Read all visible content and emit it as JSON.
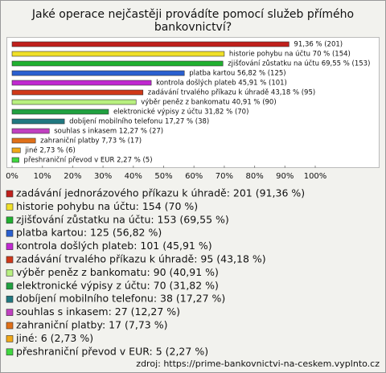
{
  "chart_data": {
    "type": "hbar",
    "title": [
      "Jaké operace nejčastěji provádíte pomocí služeb přímého",
      "bankovnictví?"
    ],
    "values": [
      91.36,
      70,
      69.55,
      56.82,
      45.91,
      43.18,
      40.91,
      31.82,
      17.27,
      12.27,
      7.73,
      2.73,
      2.27
    ],
    "value_labels": [
      "91,36 % (201)",
      "historie pohybu na účtu 70 % (154)",
      "zjišťování zůstatku na účtu 69,55 % (153)",
      "platba kartou 56,82 % (125)",
      "kontrola došlých plateb 45,91 % (101)",
      "zadávání trvalého příkazu k úhradě 43,18 % (95)",
      "výběr peněz z bankomatu 40,91 % (90)",
      "elektronické výpisy z účtu 31,82 % (70)",
      "dobíjení mobilního telefonu 17,27 % (38)",
      "souhlas s inkasem 12,27 % (27)",
      "zahraniční platby 7,73 % (17)",
      "jiné 2,73 % (6)",
      "přeshraniční převod v EUR 2,27 % (5)"
    ],
    "legend": [
      "zadávání jednorázového příkazu k úhradě: 201 (91,36 %)",
      "historie pohybu na účtu: 154 (70 %)",
      "zjišťování zůstatku na účtu: 153 (69,55 %)",
      "platba kartou: 125 (56,82 %)",
      "kontrola došlých plateb: 101 (45,91 %)",
      "zadávání trvalého příkazu k úhradě: 95 (43,18 %)",
      "výběr peněz z bankomatu: 90 (40,91 %)",
      "elektronické výpisy z účtu: 70 (31,82 %)",
      "dobíjení mobilního telefonu: 38 (17,27 %)",
      "souhlas s inkasem: 27 (12,27 %)",
      "zahraniční platby: 17 (7,73 %)",
      "jiné: 6 (2,73 %)",
      "přeshraniční převod v EUR: 5 (2,27 %)"
    ],
    "colors": [
      "#c0201c",
      "#f0e028",
      "#20b030",
      "#2a60d0",
      "#c028d0",
      "#d03818",
      "#b8f080",
      "#20a040",
      "#207880",
      "#c040c0",
      "#e07018",
      "#f0a818",
      "#40d840"
    ],
    "xlim": [
      0,
      100
    ],
    "xticks": [
      {
        "value": 0,
        "label": "0%"
      },
      {
        "value": 10,
        "label": "10%"
      },
      {
        "value": 20,
        "label": "20%"
      },
      {
        "value": 30,
        "label": "30%"
      },
      {
        "value": 40,
        "label": "40%"
      },
      {
        "value": 50,
        "label": "50%"
      },
      {
        "value": 60,
        "label": "60%"
      },
      {
        "value": 70,
        "label": "70%"
      },
      {
        "value": 80,
        "label": "80%"
      },
      {
        "value": 90,
        "label": "90%"
      },
      {
        "value": 100,
        "label": "100%"
      }
    ],
    "source": "zdroj: https://prime-bankovnictvi-na-ceskem.vyplnto.cz"
  }
}
